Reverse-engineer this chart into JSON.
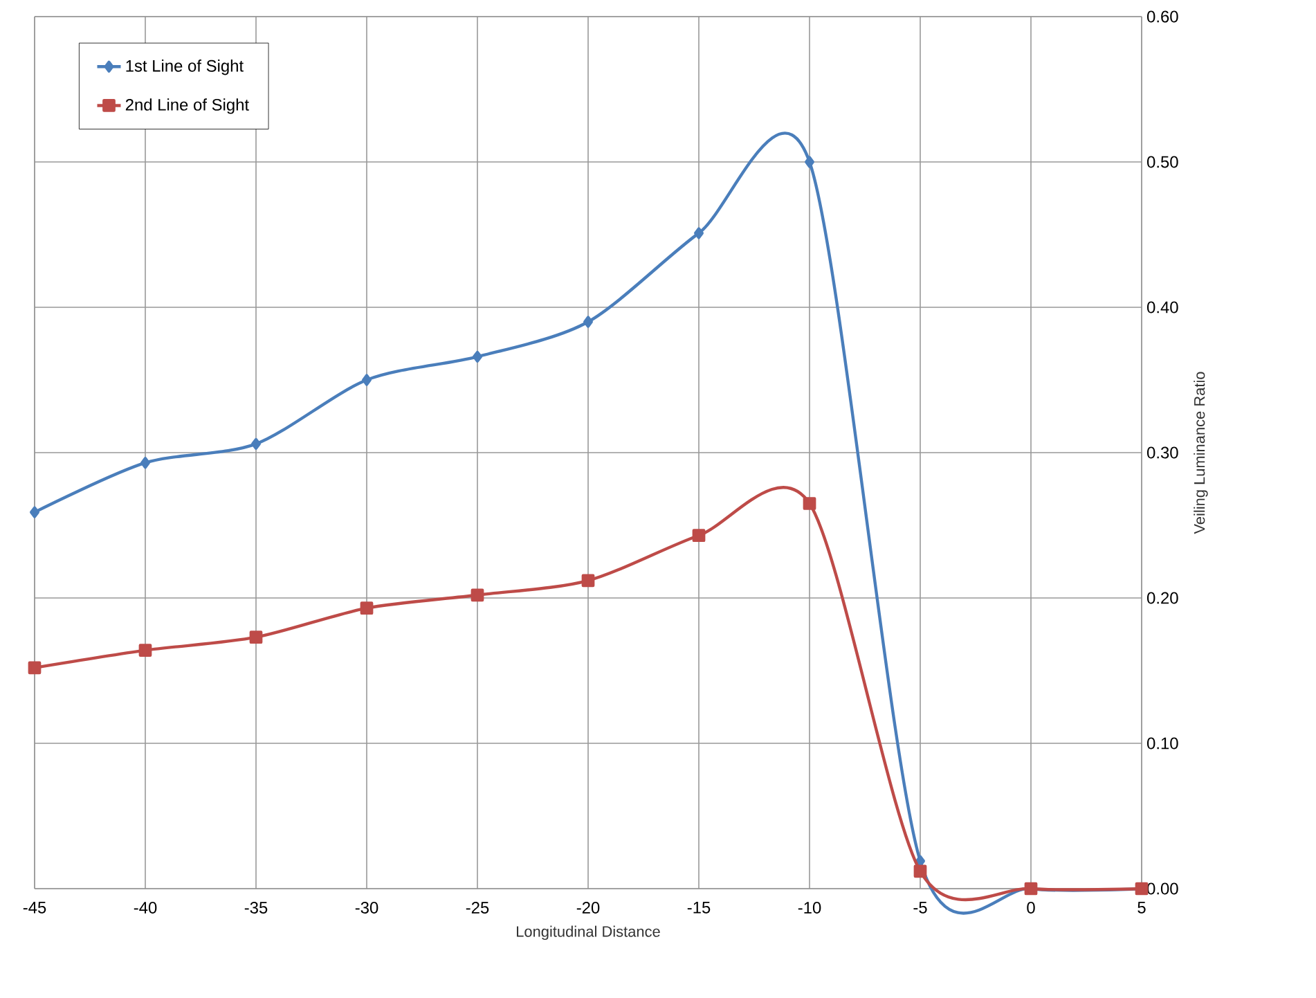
{
  "chart_data": {
    "type": "line",
    "xlabel": "Longitudinal Distance",
    "ylabel": "Veiling Luminance Ratio",
    "x": [
      -45,
      -40,
      -35,
      -30,
      -25,
      -20,
      -15,
      -10,
      -5,
      0,
      5
    ],
    "series": [
      {
        "name": "1st Line of Sight",
        "color": "#4a7ebb",
        "marker": "diamond",
        "values": [
          0.259,
          0.293,
          0.306,
          0.35,
          0.366,
          0.39,
          0.451,
          0.5,
          0.019,
          0,
          0
        ]
      },
      {
        "name": "2nd Line of Sight",
        "color": "#be4b48",
        "marker": "square",
        "values": [
          0.152,
          0.164,
          0.173,
          0.193,
          0.202,
          0.212,
          0.243,
          0.265,
          0.012,
          0,
          0
        ]
      }
    ],
    "xlim": [
      -45,
      5
    ],
    "xticks": [
      -45,
      -40,
      -35,
      -30,
      -25,
      -20,
      -15,
      -10,
      -5,
      0,
      5
    ],
    "ylim": [
      0,
      0.6
    ],
    "yticks": [
      {
        "value": 0,
        "label": "0.00"
      },
      {
        "value": 0.1,
        "label": "0.10"
      },
      {
        "value": 0.2,
        "label": "0.20"
      },
      {
        "value": 0.3,
        "label": "0.30"
      },
      {
        "value": 0.4,
        "label": "0.40"
      },
      {
        "value": 0.5,
        "label": "0.50"
      },
      {
        "value": 0.6,
        "label": "0.60"
      }
    ],
    "grid": true,
    "legend": "top left"
  }
}
